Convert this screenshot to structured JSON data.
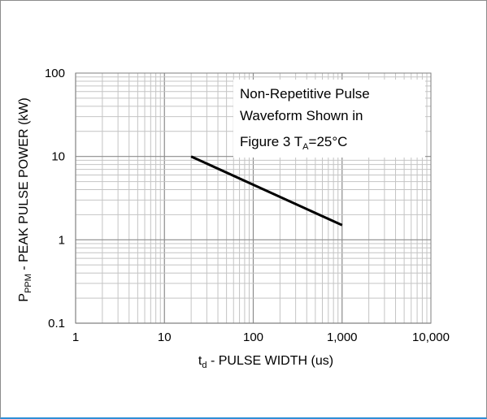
{
  "chart_data": {
    "type": "line",
    "x_scale": "log",
    "y_scale": "log",
    "xlim": [
      1,
      10000
    ],
    "ylim": [
      0.1,
      100
    ],
    "x_ticks": [
      "1",
      "10",
      "100",
      "1,000",
      "10,000"
    ],
    "y_ticks": [
      "100",
      "10",
      "1",
      "0.1"
    ],
    "xlabel": {
      "main": "t",
      "sub": "d",
      "rest": " - PULSE WIDTH (us)"
    },
    "ylabel": {
      "main": "P",
      "sub": "PPM",
      "rest": " - PEAK PULSE POWER (kW)"
    },
    "annotation": {
      "line1": "Non-Repetitive Pulse",
      "line2": "Waveform Shown in",
      "line3a": "Figure 3 T",
      "line3sub": "A",
      "line3b": "=25°C"
    },
    "grid": true,
    "series": [
      {
        "x": [
          20,
          1000
        ],
        "y": [
          10,
          1.5
        ],
        "color": "#000000"
      }
    ]
  }
}
